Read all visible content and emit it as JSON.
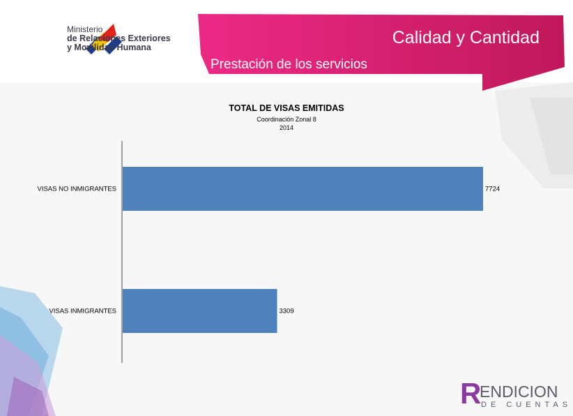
{
  "header": {
    "logo_lines": [
      "Ministerio",
      "de Relaciones Exteriores",
      "y Movilidad Humana"
    ],
    "title": "Calidad y Cantidad",
    "subtitle": "Prestación de los servicios"
  },
  "footer_logo": {
    "letter": "R",
    "top_text": "ENDICION",
    "bottom_text": "DE CUENTAS"
  },
  "colors": {
    "banner_start": "#e6247a",
    "banner_end": "#c2185b",
    "bar": "#4f81bd"
  },
  "chart_data": {
    "type": "bar",
    "orientation": "horizontal",
    "title": "TOTAL DE VISAS EMITIDAS",
    "subtitle_lines": [
      "Coordinación Zonal 8",
      "2014"
    ],
    "categories": [
      "VISAS NO INMIGRANTES",
      "VISAS INMIGRANTES"
    ],
    "values": [
      7724,
      3309
    ],
    "data_labels": [
      "7724",
      "3309"
    ],
    "xlim": [
      0,
      7724
    ],
    "grid": false,
    "legend": "none"
  }
}
